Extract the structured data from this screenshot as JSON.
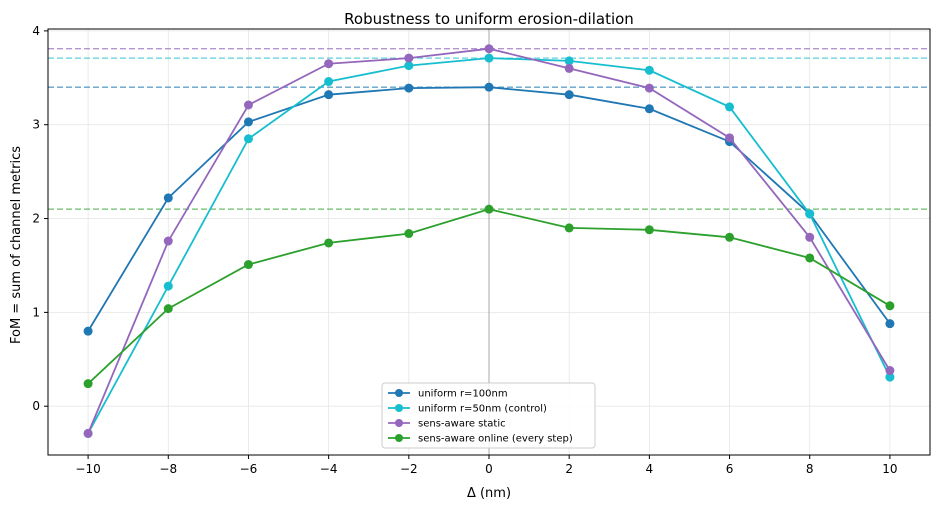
{
  "chart_data": {
    "type": "line",
    "title": "Robustness to uniform erosion-dilation",
    "xlabel": "Δ  (nm)",
    "ylabel": "FoM = sum of channel metrics",
    "x": [
      -10,
      -8,
      -6,
      -4,
      -2,
      0,
      2,
      4,
      6,
      8,
      10
    ],
    "xlim": [
      -11,
      11
    ],
    "ylim": [
      -0.52,
      4.02
    ],
    "xticks": [
      -10,
      -8,
      -6,
      -4,
      -2,
      0,
      2,
      4,
      6,
      8,
      10
    ],
    "xtick_labels": [
      "−10",
      "−8",
      "−6",
      "−4",
      "−2",
      "0",
      "2",
      "4",
      "6",
      "8",
      "10"
    ],
    "yticks": [
      0,
      1,
      2,
      3,
      4
    ],
    "ytick_labels": [
      "0",
      "1",
      "2",
      "3",
      "4"
    ],
    "grid": true,
    "legend_position": "bottom-center",
    "vline_at_x": 0,
    "series": [
      {
        "name": "uniform r=100nm",
        "color": "#1f77b4",
        "values": [
          0.8,
          2.22,
          3.03,
          3.32,
          3.39,
          3.4,
          3.32,
          3.17,
          2.82,
          2.05,
          0.88
        ],
        "reference_line": 3.4
      },
      {
        "name": "uniform r=50nm (control)",
        "color": "#17becf",
        "values": [
          -0.29,
          1.28,
          2.85,
          3.46,
          3.63,
          3.71,
          3.68,
          3.58,
          3.19,
          2.05,
          0.31
        ],
        "reference_line": 3.71
      },
      {
        "name": "sens-aware static",
        "color": "#9467bd",
        "values": [
          -0.29,
          1.76,
          3.21,
          3.65,
          3.71,
          3.81,
          3.6,
          3.39,
          2.86,
          1.8,
          0.38
        ],
        "reference_line": 3.81
      },
      {
        "name": "sens-aware online (every step)",
        "color": "#2ca02c",
        "values": [
          0.24,
          1.04,
          1.51,
          1.74,
          1.84,
          2.1,
          1.9,
          1.88,
          1.8,
          1.58,
          1.07
        ],
        "reference_line": 2.1
      }
    ]
  }
}
